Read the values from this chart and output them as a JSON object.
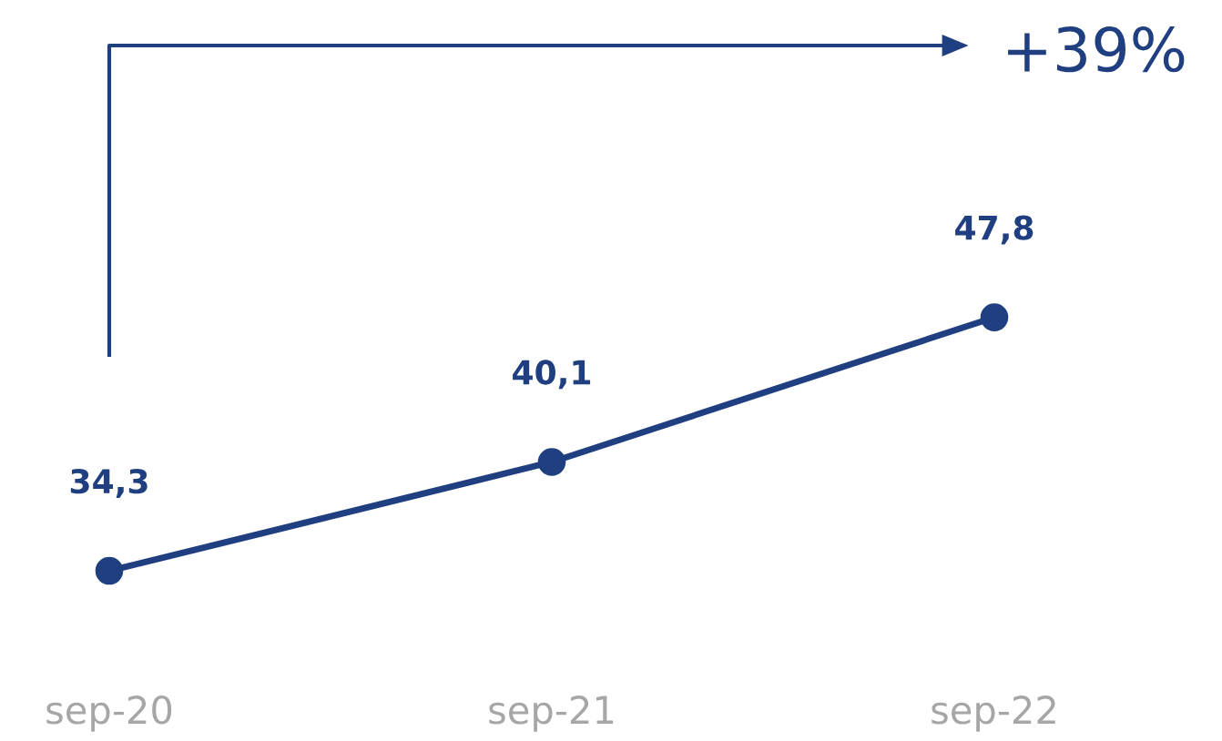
{
  "chart_data": {
    "type": "line",
    "categories": [
      "sep-20",
      "sep-21",
      "sep-22"
    ],
    "series": [
      {
        "color": "#1f3f80",
        "values": [
          34.3,
          40.1,
          47.8
        ],
        "value_labels": [
          "34,3",
          "40,1",
          "47,8"
        ]
      }
    ],
    "marker": "circle",
    "line_style": "solid",
    "grid": false,
    "legend": false,
    "annotations": [
      "+39%"
    ]
  }
}
